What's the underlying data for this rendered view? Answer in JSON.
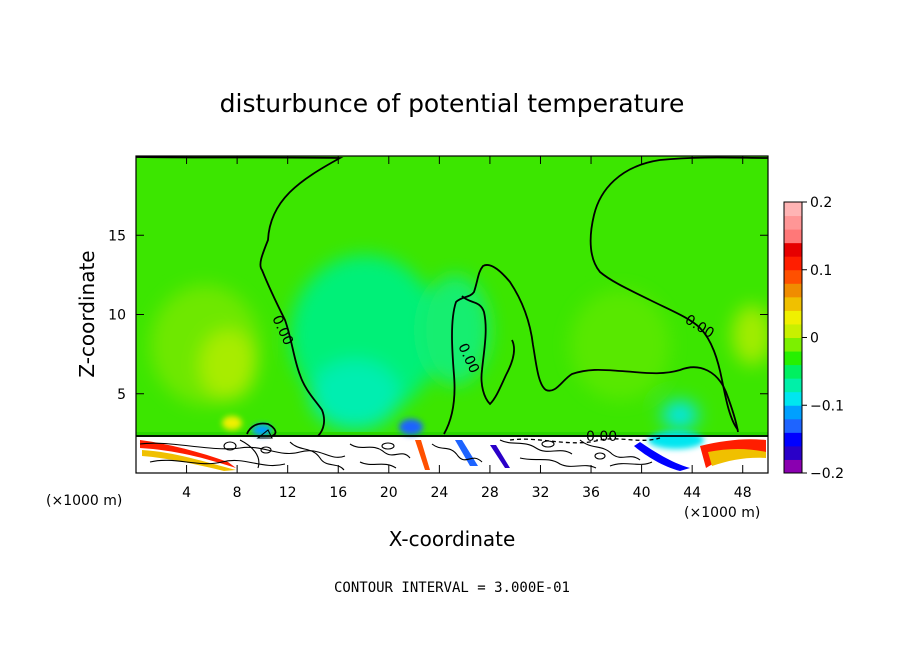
{
  "chart_data": {
    "type": "heatmap",
    "title": "disturbunce of potential temperature",
    "xlabel": "X-coordinate",
    "ylabel": "Z-coordinate",
    "x_unit": "(×1000 m)",
    "xlim": [
      0,
      50
    ],
    "ylim": [
      0,
      20
    ],
    "x_ticks": [
      4,
      8,
      12,
      16,
      20,
      24,
      28,
      32,
      36,
      40,
      44,
      48
    ],
    "y_ticks": [
      5,
      10,
      15
    ],
    "colorbar": {
      "min": -0.2,
      "max": 0.2,
      "ticks": [
        0.2,
        0.1,
        0,
        -0.1,
        -0.2
      ],
      "tick_labels": [
        "0.2",
        "0.1",
        "0",
        "−0.1",
        "−0.2"
      ],
      "colors": [
        "#8a00b0",
        "#2a00c8",
        "#0000ff",
        "#1e64ff",
        "#00a0ff",
        "#00e6f0",
        "#00f0a8",
        "#00f060",
        "#26f000",
        "#7cf000",
        "#c8f000",
        "#f0f000",
        "#f0c000",
        "#f08c00",
        "#ff5000",
        "#ff1e00",
        "#e60000",
        "#ff7878",
        "#ff9696",
        "#ffb4b4"
      ]
    },
    "contour_interval": 0.3,
    "contour_label": "0.00",
    "background_color": "#3ce600",
    "footer": "CONTOUR INTERVAL = 3.000E-01"
  }
}
